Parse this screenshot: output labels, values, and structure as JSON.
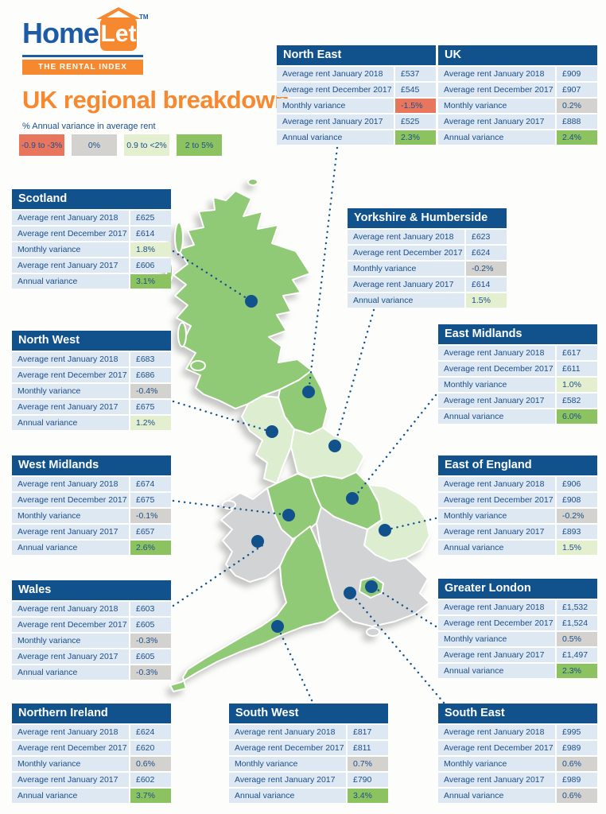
{
  "logo": {
    "home": "Home",
    "let": "Let",
    "tm": "TM",
    "tagline": "THE RENTAL INDEX"
  },
  "title": "UK regional breakdown",
  "legend": {
    "caption": "% Annual variance in average rent",
    "items": [
      {
        "label": "-0.9 to -3%",
        "color": "#e8765d"
      },
      {
        "label": "0%",
        "color": "#d4d2cf"
      },
      {
        "label": "0.9 to <2%",
        "color": "#e3efcf"
      },
      {
        "label": "2 to 5%",
        "color": "#8cc360"
      }
    ]
  },
  "row_labels": [
    "Average rent January 2018",
    "Average rent December 2017",
    "Monthly variance",
    "Average rent January 2017",
    "Annual variance"
  ],
  "regions": [
    {
      "id": "north-east",
      "name": "North East",
      "values": [
        "£537",
        "£545",
        "-1.5%",
        "£525",
        "2.3%"
      ],
      "monthly_variance_color": "red",
      "annual_variance_color": "green"
    },
    {
      "id": "uk",
      "name": "UK",
      "values": [
        "£909",
        "£907",
        "0.2%",
        "£888",
        "2.4%"
      ],
      "monthly_variance_color": "gray",
      "annual_variance_color": "green"
    },
    {
      "id": "scotland",
      "name": "Scotland",
      "values": [
        "£625",
        "£614",
        "1.8%",
        "£606",
        "3.1%"
      ],
      "monthly_variance_color": "lightgreen",
      "annual_variance_color": "green"
    },
    {
      "id": "yorkshire-humberside",
      "name": "Yorkshire & Humberside",
      "values": [
        "£623",
        "£624",
        "-0.2%",
        "£614",
        "1.5%"
      ],
      "monthly_variance_color": "gray",
      "annual_variance_color": "lightgreen"
    },
    {
      "id": "north-west",
      "name": "North West",
      "values": [
        "£683",
        "£686",
        "-0.4%",
        "£675",
        "1.2%"
      ],
      "monthly_variance_color": "gray",
      "annual_variance_color": "lightgreen"
    },
    {
      "id": "east-midlands",
      "name": "East Midlands",
      "values": [
        "£617",
        "£611",
        "1.0%",
        "£582",
        "6.0%"
      ],
      "monthly_variance_color": "lightgreen",
      "annual_variance_color": "green"
    },
    {
      "id": "west-midlands",
      "name": "West Midlands",
      "values": [
        "£674",
        "£675",
        "-0.1%",
        "£657",
        "2.6%"
      ],
      "monthly_variance_color": "gray",
      "annual_variance_color": "green"
    },
    {
      "id": "east-of-england",
      "name": "East of England",
      "values": [
        "£906",
        "£908",
        "-0.2%",
        "£893",
        "1.5%"
      ],
      "monthly_variance_color": "gray",
      "annual_variance_color": "lightgreen"
    },
    {
      "id": "wales",
      "name": "Wales",
      "values": [
        "£603",
        "£605",
        "-0.3%",
        "£605",
        "-0.3%"
      ],
      "monthly_variance_color": "gray",
      "annual_variance_color": "gray"
    },
    {
      "id": "greater-london",
      "name": "Greater London",
      "values": [
        "£1,532",
        "£1,524",
        "0.5%",
        "£1,497",
        "2.3%"
      ],
      "monthly_variance_color": "gray",
      "annual_variance_color": "green"
    },
    {
      "id": "northern-ireland",
      "name": "Northern Ireland",
      "values": [
        "£624",
        "£620",
        "0.6%",
        "£602",
        "3.7%"
      ],
      "monthly_variance_color": "gray",
      "annual_variance_color": "green"
    },
    {
      "id": "south-west",
      "name": "South West",
      "values": [
        "£817",
        "£811",
        "0.7%",
        "£790",
        "3.4%"
      ],
      "monthly_variance_color": "gray",
      "annual_variance_color": "green"
    },
    {
      "id": "south-east",
      "name": "South East",
      "values": [
        "£995",
        "£989",
        "0.6%",
        "£989",
        "0.6%"
      ],
      "monthly_variance_color": "gray",
      "annual_variance_color": "gray"
    }
  ],
  "map": {
    "marker_color": "#11528d",
    "fill_palette": {
      "green": "#90ca77",
      "lightgreen": "#dcedd0",
      "gray": "#d2d3d5"
    },
    "regions_shown": [
      "scotland",
      "north-east",
      "north-west",
      "yorkshire-humberside",
      "east-midlands",
      "west-midlands",
      "wales",
      "east-of-england",
      "greater-london",
      "south-east",
      "south-west"
    ]
  },
  "colors": {
    "brand_blue": "#11528d",
    "logo_blue": "#1d5ba5",
    "orange": "#f6892f",
    "table_row_bg": "#dde8f2",
    "table_text": "#1b4e8c"
  }
}
